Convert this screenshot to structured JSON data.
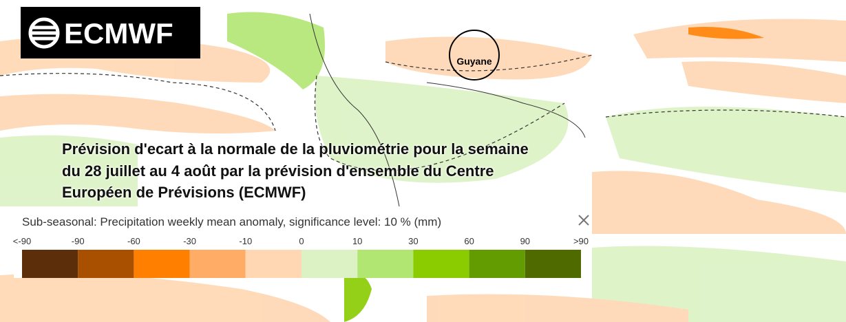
{
  "logo": {
    "text": "ECMWF"
  },
  "map": {
    "labels": [
      "Guyane"
    ]
  },
  "title": {
    "lines": [
      "Prévision d'ecart à la normale de la pluviométrie pour la semaine",
      "du 28 juillet au 4 août par la prévision d'ensemble du Centre",
      "Européen de Prévisions (ECMWF)"
    ]
  },
  "legend": {
    "title": "Sub-seasonal: Precipitation weekly mean anomaly, significance level: 10 % (mm)",
    "ticks": [
      "<-90",
      "-90",
      "-60",
      "-30",
      "-10",
      "0",
      "10",
      "30",
      "60",
      "90",
      ">90"
    ],
    "colors": [
      "#5c2e0a",
      "#a84f00",
      "#ff8000",
      "#ffad66",
      "#ffd7b3",
      "#dcf2c4",
      "#b2e673",
      "#8acc00",
      "#629c00",
      "#4f6b00"
    ]
  }
}
